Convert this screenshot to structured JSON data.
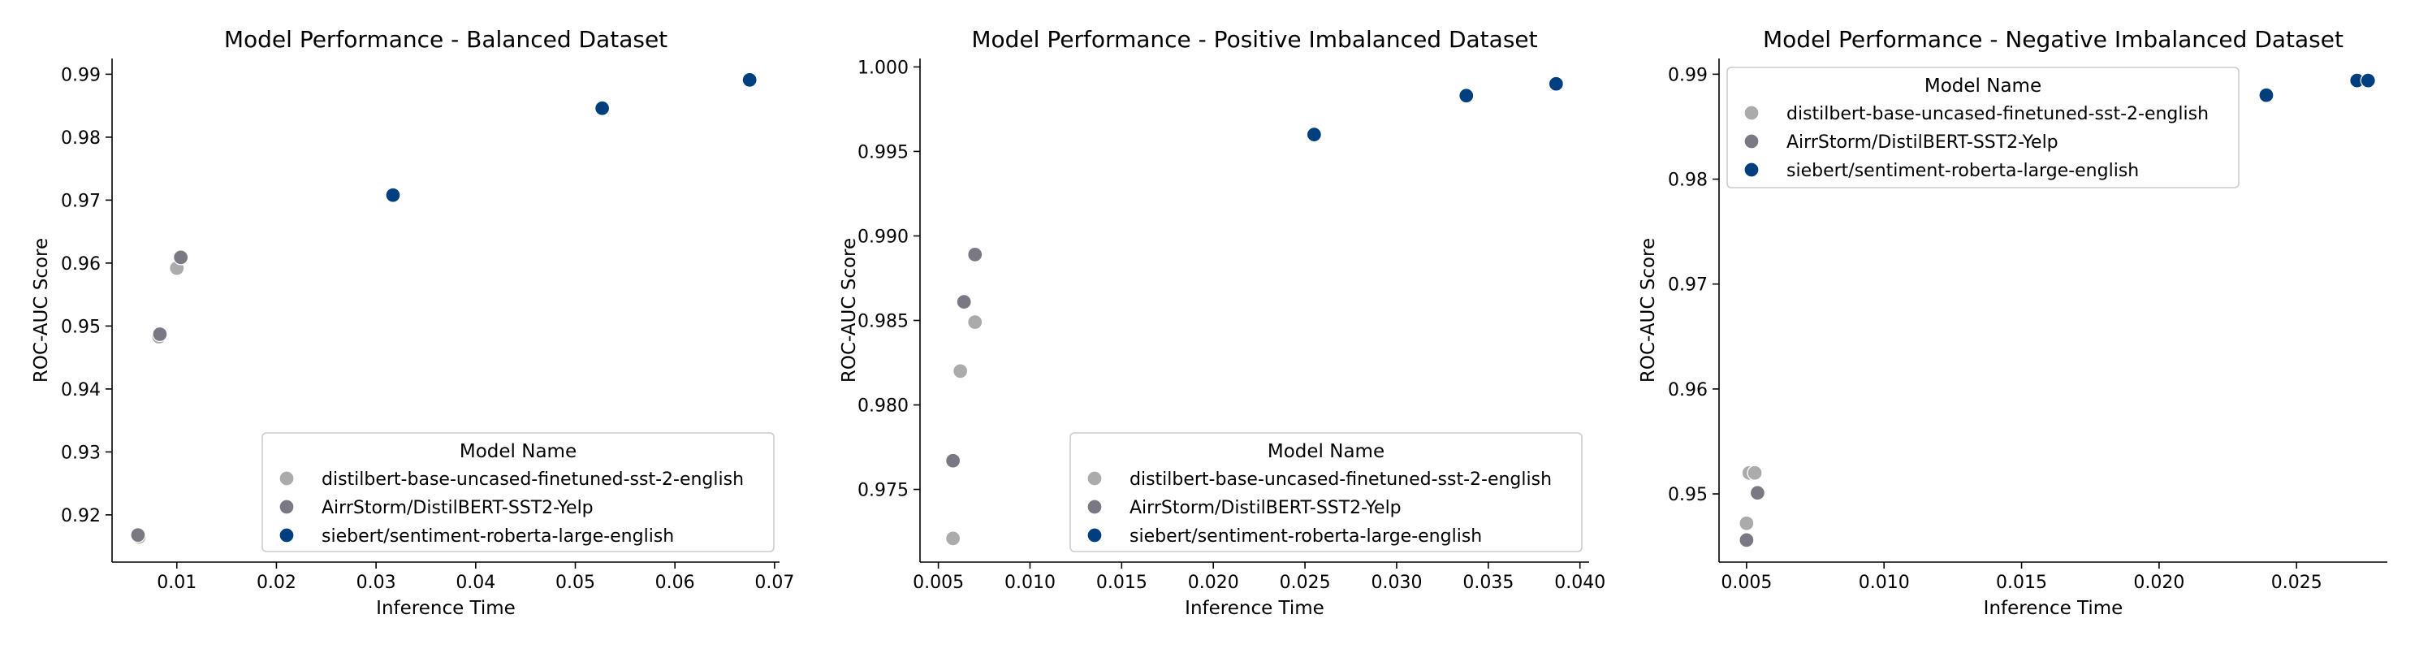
{
  "chart_data": [
    {
      "type": "scatter",
      "title": "Model Performance - Balanced Dataset",
      "xlabel": "Inference Time",
      "ylabel": "ROC-AUC Score",
      "xlim": [
        0.0035,
        0.0705
      ],
      "ylim": [
        0.9125,
        0.9925
      ],
      "xticks": [
        0.01,
        0.02,
        0.03,
        0.04,
        0.05,
        0.06,
        0.07
      ],
      "xtick_labels": [
        "0.01",
        "0.02",
        "0.03",
        "0.04",
        "0.05",
        "0.06",
        "0.07"
      ],
      "yticks": [
        0.92,
        0.93,
        0.94,
        0.95,
        0.96,
        0.97,
        0.98,
        0.99
      ],
      "ytick_labels": [
        "0.92",
        "0.93",
        "0.94",
        "0.95",
        "0.96",
        "0.97",
        "0.98",
        "0.99"
      ],
      "legend": {
        "title": "Model Name",
        "placement": "lower-right"
      },
      "series": [
        {
          "name": "distilbert-base-uncased-finetuned-sst-2-english",
          "color": "#ababab",
          "points": [
            {
              "x": 0.0062,
              "y": 0.9165
            },
            {
              "x": 0.0082,
              "y": 0.9483
            },
            {
              "x": 0.01,
              "y": 0.9592
            }
          ]
        },
        {
          "name": "AirrStorm/DistilBERT-SST2-Yelp",
          "color": "#7a7882",
          "points": [
            {
              "x": 0.0061,
              "y": 0.9168
            },
            {
              "x": 0.0083,
              "y": 0.9487
            },
            {
              "x": 0.0104,
              "y": 0.9609
            }
          ]
        },
        {
          "name": "siebert/sentiment-roberta-large-english",
          "color": "#003f7f",
          "points": [
            {
              "x": 0.0317,
              "y": 0.9708
            },
            {
              "x": 0.0527,
              "y": 0.9846
            },
            {
              "x": 0.0675,
              "y": 0.9891
            }
          ]
        }
      ]
    },
    {
      "type": "scatter",
      "title": "Model Performance - Positive Imbalanced Dataset",
      "xlabel": "Inference Time",
      "ylabel": "ROC-AUC Score",
      "xlim": [
        0.004,
        0.0405
      ],
      "ylim": [
        0.9707,
        1.0005
      ],
      "xticks": [
        0.005,
        0.01,
        0.015,
        0.02,
        0.025,
        0.03,
        0.035,
        0.04
      ],
      "xtick_labels": [
        "0.005",
        "0.010",
        "0.015",
        "0.020",
        "0.025",
        "0.030",
        "0.035",
        "0.040"
      ],
      "yticks": [
        0.975,
        0.98,
        0.985,
        0.99,
        0.995,
        1.0
      ],
      "ytick_labels": [
        "0.975",
        "0.980",
        "0.985",
        "0.990",
        "0.995",
        "1.000"
      ],
      "legend": {
        "title": "Model Name",
        "placement": "lower-right"
      },
      "series": [
        {
          "name": "distilbert-base-uncased-finetuned-sst-2-english",
          "color": "#ababab",
          "points": [
            {
              "x": 0.0058,
              "y": 0.9721
            },
            {
              "x": 0.0062,
              "y": 0.982
            },
            {
              "x": 0.007,
              "y": 0.9849
            }
          ]
        },
        {
          "name": "AirrStorm/DistilBERT-SST2-Yelp",
          "color": "#7a7882",
          "points": [
            {
              "x": 0.0058,
              "y": 0.9767
            },
            {
              "x": 0.0064,
              "y": 0.9861
            },
            {
              "x": 0.007,
              "y": 0.9889
            }
          ]
        },
        {
          "name": "siebert/sentiment-roberta-large-english",
          "color": "#003f7f",
          "points": [
            {
              "x": 0.0255,
              "y": 0.996
            },
            {
              "x": 0.0338,
              "y": 0.9983
            },
            {
              "x": 0.0387,
              "y": 0.999
            }
          ]
        }
      ]
    },
    {
      "type": "scatter",
      "title": "Model Performance - Negative Imbalanced Dataset",
      "xlabel": "Inference Time",
      "ylabel": "ROC-AUC Score",
      "xlim": [
        0.004,
        0.0283
      ],
      "ylim": [
        0.9435,
        0.9915
      ],
      "xticks": [
        0.005,
        0.01,
        0.015,
        0.02,
        0.025
      ],
      "xtick_labels": [
        "0.005",
        "0.010",
        "0.015",
        "0.020",
        "0.025"
      ],
      "yticks": [
        0.95,
        0.96,
        0.97,
        0.98,
        0.99
      ],
      "ytick_labels": [
        "0.95",
        "0.96",
        "0.97",
        "0.98",
        "0.99"
      ],
      "legend": {
        "title": "Model Name",
        "placement": "upper-left"
      },
      "series": [
        {
          "name": "distilbert-base-uncased-finetuned-sst-2-english",
          "color": "#ababab",
          "points": [
            {
              "x": 0.005,
              "y": 0.9472
            },
            {
              "x": 0.0051,
              "y": 0.952
            },
            {
              "x": 0.0053,
              "y": 0.952
            }
          ]
        },
        {
          "name": "AirrStorm/DistilBERT-SST2-Yelp",
          "color": "#7a7882",
          "points": [
            {
              "x": 0.005,
              "y": 0.9456
            },
            {
              "x": 0.0054,
              "y": 0.9501
            }
          ]
        },
        {
          "name": "siebert/sentiment-roberta-large-english",
          "color": "#003f7f",
          "points": [
            {
              "x": 0.0239,
              "y": 0.988
            },
            {
              "x": 0.0272,
              "y": 0.9894
            },
            {
              "x": 0.0276,
              "y": 0.9894
            }
          ]
        }
      ]
    }
  ]
}
